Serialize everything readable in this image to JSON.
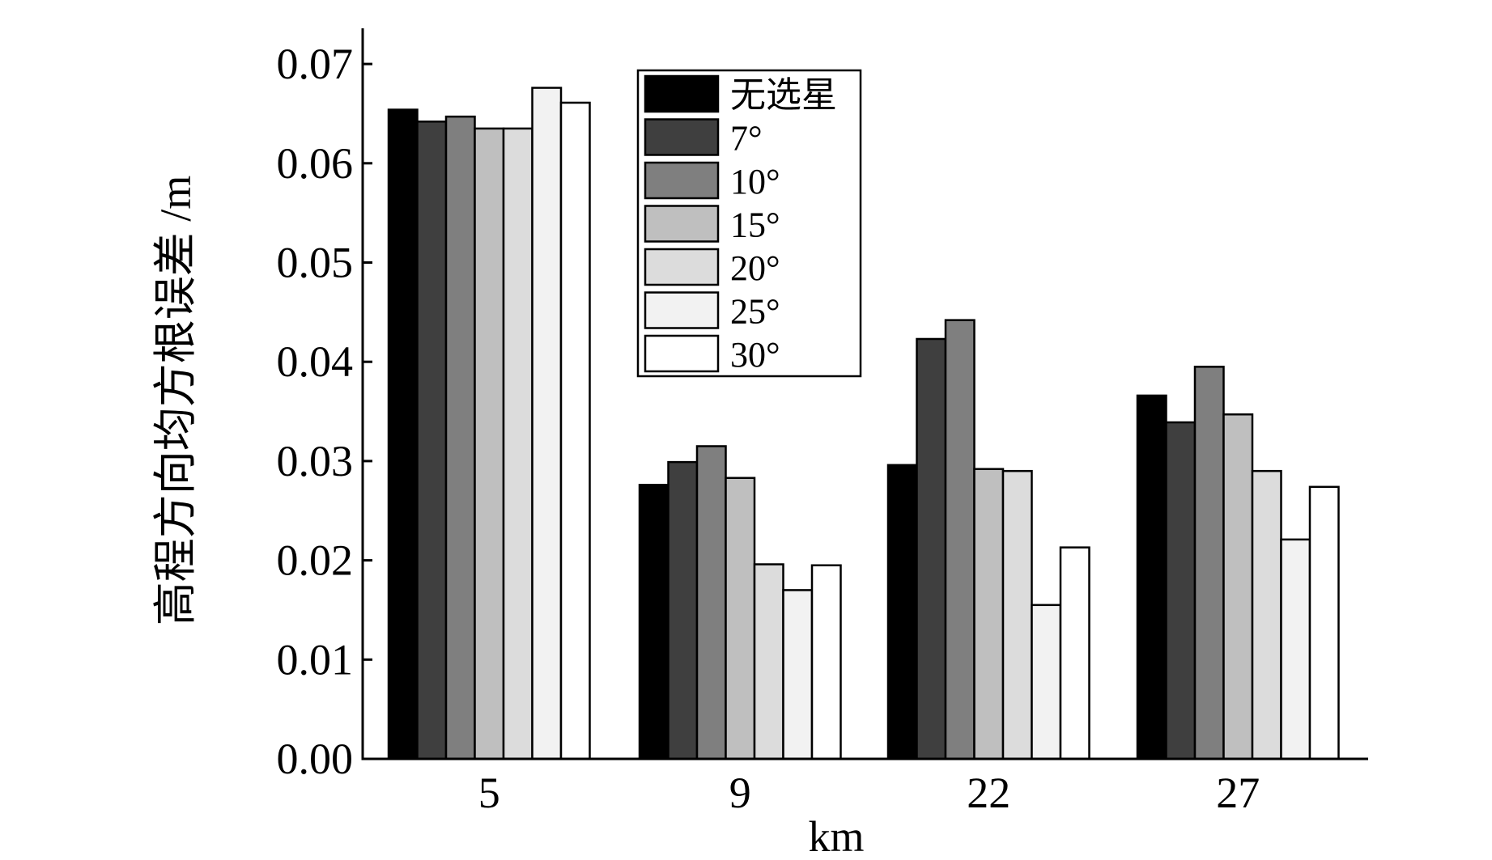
{
  "chart_data": {
    "type": "bar",
    "categories": [
      "5",
      "9",
      "22",
      "27"
    ],
    "series": [
      {
        "name": "无选星",
        "color": "#000000",
        "values": [
          0.0654,
          0.0276,
          0.0296,
          0.0366
        ]
      },
      {
        "name": "7°",
        "color": "#3f3f3f",
        "values": [
          0.0642,
          0.0299,
          0.0423,
          0.0339
        ]
      },
      {
        "name": "10°",
        "color": "#7f7f7f",
        "values": [
          0.0647,
          0.0315,
          0.0442,
          0.0395
        ]
      },
      {
        "name": "15°",
        "color": "#bfbfbf",
        "values": [
          0.0635,
          0.0283,
          0.0292,
          0.0347
        ]
      },
      {
        "name": "20°",
        "color": "#dcdcdc",
        "values": [
          0.0635,
          0.0196,
          0.029,
          0.029
        ]
      },
      {
        "name": "25°",
        "color": "#f2f2f2",
        "values": [
          0.0676,
          0.017,
          0.0155,
          0.0221
        ]
      },
      {
        "name": "30°",
        "color": "#ffffff",
        "values": [
          0.0661,
          0.0195,
          0.0213,
          0.0274
        ]
      }
    ],
    "yticks": [
      "0.00",
      "0.01",
      "0.02",
      "0.03",
      "0.04",
      "0.05",
      "0.06",
      "0.07"
    ],
    "ylim": [
      0,
      0.073
    ],
    "xlabel": "km",
    "ylabel": "高程方向均方根误差 /m",
    "legend_position": "top-center",
    "grid": false
  }
}
